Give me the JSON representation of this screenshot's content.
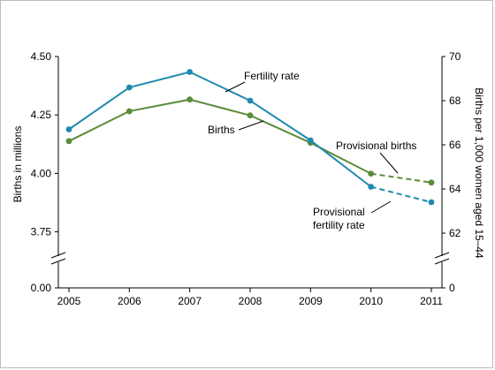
{
  "chart_data": {
    "type": "line",
    "x": [
      2005,
      2006,
      2007,
      2008,
      2009,
      2010,
      2011
    ],
    "left_axis": {
      "label": "Births in millions",
      "ticks": [
        "4.50",
        "4.25",
        "4.00",
        "3.75",
        "0.00"
      ],
      "tick_values": [
        4.5,
        4.25,
        4.0,
        3.75,
        0.0
      ],
      "range": [
        3.65,
        4.5
      ],
      "broken": true
    },
    "right_axis": {
      "label": "Births per 1,000 women aged 15–44",
      "ticks": [
        "70",
        "68",
        "66",
        "64",
        "62",
        "0"
      ],
      "tick_values": [
        70,
        68,
        66,
        64,
        62,
        0
      ],
      "range": [
        61.0,
        70.0
      ],
      "broken": true
    },
    "series": [
      {
        "name": "Births",
        "axis": "left",
        "color": "#5b8c3a",
        "values": [
          4.138,
          4.266,
          4.316,
          4.248,
          4.131,
          3.999,
          3.961
        ],
        "provisional_from_index": 5
      },
      {
        "name": "Fertility rate",
        "axis": "right",
        "color": "#1f8aad",
        "values": [
          66.7,
          68.6,
          69.3,
          68.0,
          66.2,
          64.1,
          63.4
        ],
        "provisional_from_index": 5
      }
    ],
    "annotations": [
      {
        "id": "fert",
        "lines": [
          "Fertility rate"
        ]
      },
      {
        "id": "births",
        "lines": [
          "Births"
        ]
      },
      {
        "id": "prov-births",
        "lines": [
          "Provisional births"
        ]
      },
      {
        "id": "prov-fert",
        "lines": [
          "Provisional",
          "fertility rate"
        ]
      }
    ],
    "grid": false
  }
}
